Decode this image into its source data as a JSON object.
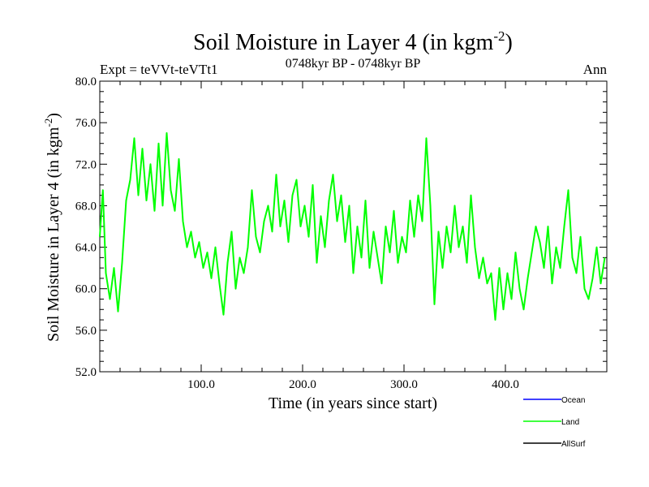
{
  "header": {
    "title_main": "Soil Moisture in Layer 4 (in kgm",
    "title_sup": "-2",
    "title_close": ")",
    "subtitle": "0748kyr BP - 0748kyr BP",
    "expt": "Expt = teVVt-teVTt1",
    "season": "Ann"
  },
  "chart_data": {
    "type": "line",
    "xlabel": "Time (in years since start)",
    "ylabel_main": "Soil Moisture in Layer 4 (in kgm",
    "ylabel_sup": "-2",
    "ylabel_close": ")",
    "xlim": [
      0,
      500
    ],
    "ylim": [
      52,
      80
    ],
    "x_ticks": [
      100,
      200,
      300,
      400
    ],
    "x_tick_labels": [
      "100.0",
      "200.0",
      "300.0",
      "400.0"
    ],
    "y_ticks": [
      52,
      56,
      60,
      64,
      68,
      72,
      76,
      80
    ],
    "y_tick_labels": [
      "52.0",
      "56.0",
      "60.0",
      "64.0",
      "68.0",
      "72.0",
      "76.0",
      "80.0"
    ],
    "legend_position": "bottom-right",
    "series": [
      {
        "name": "Ocean",
        "color": "#0000ff",
        "x": [],
        "y": []
      },
      {
        "name": "Land",
        "color": "#00ff00",
        "x": [
          0,
          3,
          6,
          10,
          14,
          18,
          22,
          26,
          30,
          34,
          38,
          42,
          46,
          50,
          54,
          58,
          62,
          66,
          70,
          74,
          78,
          82,
          86,
          90,
          94,
          98,
          102,
          106,
          110,
          114,
          118,
          122,
          126,
          130,
          134,
          138,
          142,
          146,
          150,
          154,
          158,
          162,
          166,
          170,
          174,
          178,
          182,
          186,
          190,
          194,
          198,
          202,
          206,
          210,
          214,
          218,
          222,
          226,
          230,
          234,
          238,
          242,
          246,
          250,
          254,
          258,
          262,
          266,
          270,
          274,
          278,
          282,
          286,
          290,
          294,
          298,
          302,
          306,
          310,
          314,
          318,
          322,
          326,
          330,
          334,
          338,
          342,
          346,
          350,
          354,
          358,
          362,
          366,
          370,
          374,
          378,
          382,
          386,
          390,
          394,
          398,
          402,
          406,
          410,
          414,
          418,
          422,
          426,
          430,
          434,
          438,
          442,
          446,
          450,
          454,
          458,
          462,
          466,
          470,
          474,
          478,
          482,
          486,
          490,
          494,
          498
        ],
        "y": [
          65.0,
          69.5,
          61.5,
          59.0,
          62.0,
          57.8,
          62.5,
          68.5,
          70.5,
          74.5,
          69.0,
          73.5,
          68.5,
          72.0,
          67.5,
          74.0,
          68.0,
          75.0,
          69.5,
          67.5,
          72.5,
          66.5,
          64.0,
          65.5,
          63.0,
          64.5,
          62.0,
          63.5,
          61.0,
          64.0,
          60.5,
          57.5,
          62.5,
          65.5,
          60.0,
          63.0,
          61.5,
          64.0,
          69.5,
          65.0,
          63.5,
          66.5,
          68.0,
          65.5,
          71.0,
          66.0,
          68.5,
          64.5,
          69.0,
          70.5,
          66.0,
          68.0,
          65.0,
          70.0,
          62.5,
          67.0,
          64.0,
          68.5,
          71.0,
          66.5,
          69.0,
          64.5,
          68.0,
          61.5,
          66.0,
          63.0,
          68.5,
          62.0,
          65.5,
          63.0,
          60.5,
          66.0,
          63.5,
          67.5,
          62.5,
          65.0,
          63.5,
          68.5,
          65.0,
          69.0,
          66.5,
          74.5,
          68.0,
          58.5,
          65.5,
          62.0,
          66.0,
          63.5,
          68.0,
          64.0,
          66.0,
          62.5,
          69.0,
          64.0,
          61.0,
          63.0,
          60.5,
          61.5,
          57.0,
          62.0,
          58.0,
          61.5,
          59.0,
          63.5,
          60.0,
          58.0,
          61.0,
          63.5,
          66.0,
          64.5,
          62.0,
          66.0,
          60.5,
          64.0,
          62.0,
          66.0,
          69.5,
          63.0,
          61.5,
          65.0,
          60.0,
          59.0,
          61.0,
          64.0,
          60.5,
          63.0
        ]
      },
      {
        "name": "AllSurf",
        "color": "#000000",
        "x": [],
        "y": []
      }
    ]
  }
}
